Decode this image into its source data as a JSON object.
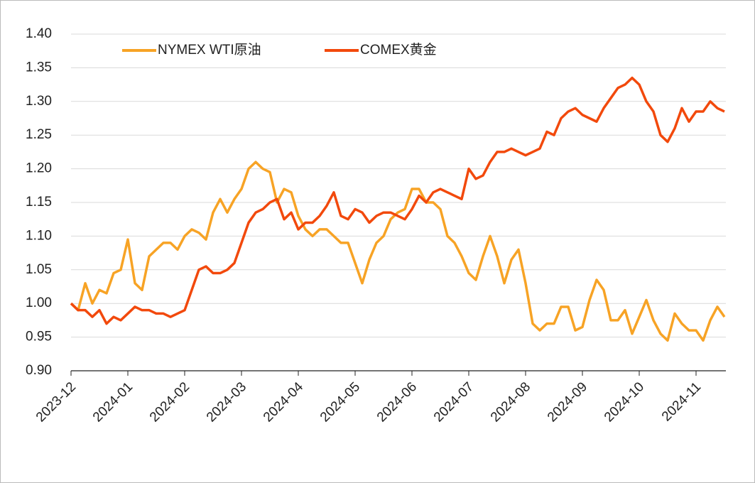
{
  "chart_data": {
    "type": "line",
    "categories": [
      "2023-12",
      null,
      null,
      null,
      null,
      null,
      null,
      null,
      "2024-01",
      null,
      null,
      null,
      null,
      null,
      null,
      null,
      "2024-02",
      null,
      null,
      null,
      null,
      null,
      null,
      null,
      "2024-03",
      null,
      null,
      null,
      null,
      null,
      null,
      null,
      "2024-04",
      null,
      null,
      null,
      null,
      null,
      null,
      null,
      "2024-05",
      null,
      null,
      null,
      null,
      null,
      null,
      null,
      "2024-06",
      null,
      null,
      null,
      null,
      null,
      null,
      null,
      "2024-07",
      null,
      null,
      null,
      null,
      null,
      null,
      null,
      "2024-08",
      null,
      null,
      null,
      null,
      null,
      null,
      null,
      "2024-09",
      null,
      null,
      null,
      null,
      null,
      null,
      null,
      "2024-10",
      null,
      null,
      null,
      null,
      null,
      null,
      null,
      "2024-11",
      null,
      null,
      null,
      null
    ],
    "series": [
      {
        "name": "NYMEX WTI原油",
        "color": "#f7a325",
        "values": [
          1.0,
          0.99,
          1.03,
          1.0,
          1.02,
          1.015,
          1.045,
          1.05,
          1.095,
          1.03,
          1.02,
          1.07,
          1.08,
          1.09,
          1.09,
          1.08,
          1.1,
          1.11,
          1.105,
          1.095,
          1.135,
          1.155,
          1.135,
          1.155,
          1.17,
          1.2,
          1.21,
          1.2,
          1.195,
          1.15,
          1.17,
          1.165,
          1.13,
          1.11,
          1.1,
          1.11,
          1.11,
          1.1,
          1.09,
          1.09,
          1.06,
          1.03,
          1.065,
          1.09,
          1.1,
          1.125,
          1.135,
          1.14,
          1.17,
          1.17,
          1.15,
          1.15,
          1.14,
          1.1,
          1.09,
          1.07,
          1.045,
          1.035,
          1.07,
          1.1,
          1.07,
          1.03,
          1.065,
          1.08,
          1.03,
          0.97,
          0.96,
          0.97,
          0.97,
          0.995,
          0.995,
          0.96,
          0.965,
          1.005,
          1.035,
          1.02,
          0.975,
          0.975,
          0.99,
          0.955,
          0.98,
          1.005,
          0.975,
          0.955,
          0.945,
          0.985,
          0.97,
          0.96,
          0.96,
          0.945,
          0.975,
          0.995,
          0.98
        ]
      },
      {
        "name": "COMEX黄金",
        "color": "#f2490c",
        "values": [
          1.0,
          0.99,
          0.99,
          0.98,
          0.99,
          0.97,
          0.98,
          0.975,
          0.985,
          0.995,
          0.99,
          0.99,
          0.985,
          0.985,
          0.98,
          0.985,
          0.99,
          1.02,
          1.05,
          1.055,
          1.045,
          1.045,
          1.05,
          1.06,
          1.09,
          1.12,
          1.135,
          1.14,
          1.15,
          1.155,
          1.125,
          1.135,
          1.11,
          1.12,
          1.12,
          1.13,
          1.145,
          1.165,
          1.13,
          1.125,
          1.14,
          1.135,
          1.12,
          1.13,
          1.135,
          1.135,
          1.13,
          1.125,
          1.14,
          1.16,
          1.15,
          1.165,
          1.17,
          1.165,
          1.16,
          1.155,
          1.2,
          1.185,
          1.19,
          1.21,
          1.225,
          1.225,
          1.23,
          1.225,
          1.22,
          1.225,
          1.23,
          1.255,
          1.25,
          1.275,
          1.285,
          1.29,
          1.28,
          1.275,
          1.27,
          1.29,
          1.305,
          1.32,
          1.325,
          1.335,
          1.325,
          1.3,
          1.285,
          1.25,
          1.24,
          1.26,
          1.29,
          1.27,
          1.285,
          1.285,
          1.3,
          1.29,
          1.285
        ]
      }
    ],
    "ylim": [
      0.9,
      1.4
    ],
    "yticks": [
      {
        "value": 0.9,
        "label": "0.90"
      },
      {
        "value": 0.95,
        "label": "0.95"
      },
      {
        "value": 1.0,
        "label": "1.00"
      },
      {
        "value": 1.05,
        "label": "1.05"
      },
      {
        "value": 1.1,
        "label": "1.10"
      },
      {
        "value": 1.15,
        "label": "1.15"
      },
      {
        "value": 1.2,
        "label": "1.20"
      },
      {
        "value": 1.25,
        "label": "1.25"
      },
      {
        "value": 1.3,
        "label": "1.30"
      },
      {
        "value": 1.35,
        "label": "1.35"
      },
      {
        "value": 1.4,
        "label": "1.40"
      }
    ],
    "grid": true,
    "legend": "top"
  }
}
